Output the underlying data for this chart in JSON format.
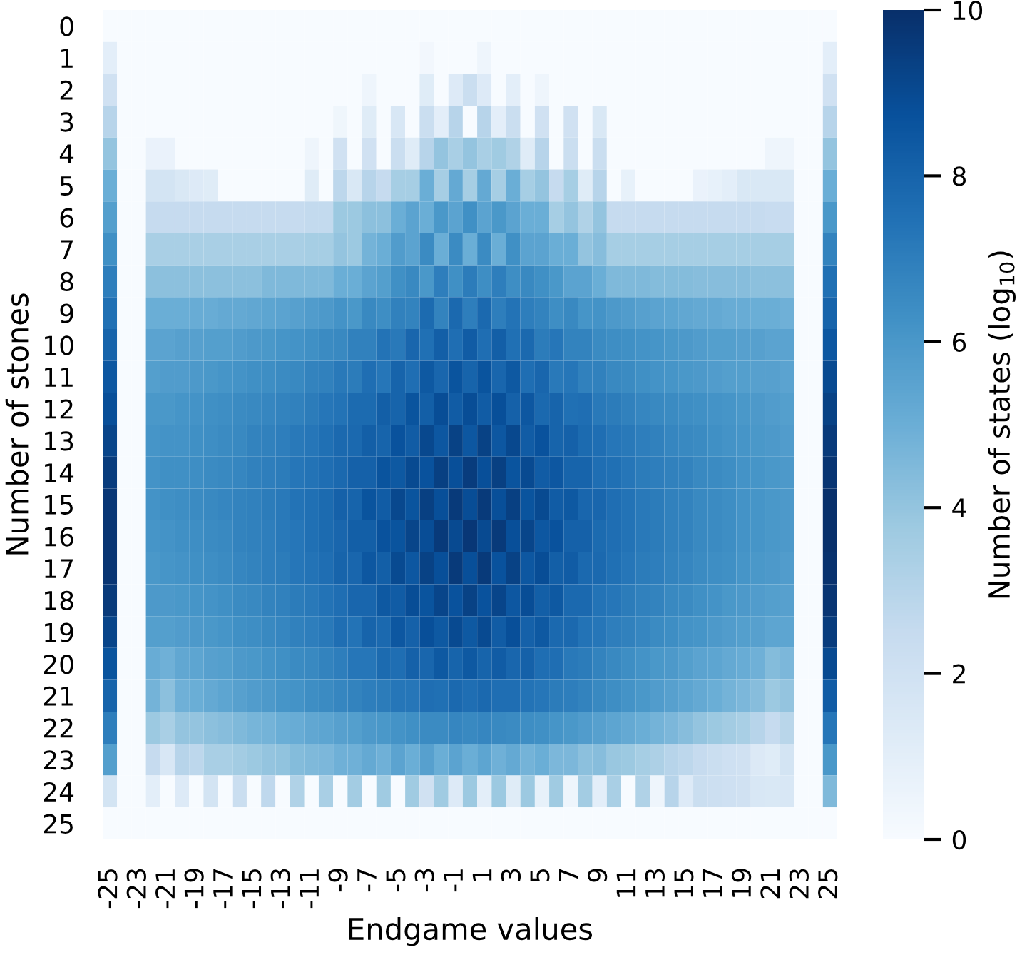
{
  "chart_data": {
    "type": "heatmap",
    "xlabel": "Endgame values",
    "ylabel": "Number of stones",
    "clabel": "Number of states (log$_{10}$)",
    "categories": [
      "-25",
      null,
      "-23",
      null,
      "-21",
      null,
      "-19",
      null,
      "-17",
      null,
      "-15",
      null,
      "-13",
      null,
      "-11",
      null,
      "-9",
      null,
      "-7",
      null,
      "-5",
      null,
      "-3",
      null,
      "-1",
      null,
      "1",
      null,
      "3",
      null,
      "5",
      null,
      "7",
      null,
      "9",
      null,
      "11",
      null,
      "13",
      null,
      "15",
      null,
      "17",
      null,
      "19",
      null,
      "21",
      null,
      "23",
      null,
      "25"
    ],
    "y_categories": [
      "0",
      "1",
      "2",
      "3",
      "4",
      "5",
      "6",
      "7",
      "8",
      "9",
      "10",
      "11",
      "12",
      "13",
      "14",
      "15",
      "16",
      "17",
      "18",
      "19",
      "20",
      "21",
      "22",
      "23",
      "24",
      "25"
    ],
    "clim": [
      0,
      10
    ],
    "cticks": [
      0,
      2,
      4,
      6,
      8,
      10
    ],
    "cells": [
      [
        0,
        0,
        0,
        0,
        0,
        0,
        0,
        0,
        0,
        0,
        0,
        0,
        0,
        0,
        0,
        0,
        0,
        0,
        0,
        0,
        0,
        0,
        0,
        0,
        0,
        0,
        0,
        0,
        0,
        0,
        0,
        0,
        0,
        0,
        0,
        0,
        0,
        0,
        0,
        0,
        0,
        0,
        0,
        0,
        0,
        0,
        0,
        0,
        0,
        0,
        0
      ],
      [
        1,
        0,
        0,
        0,
        0,
        0,
        0,
        0,
        0,
        0,
        0,
        0,
        0,
        0,
        0,
        0,
        0,
        0,
        0,
        0,
        0,
        0,
        0.3,
        0,
        0,
        0,
        0.5,
        0,
        0,
        0,
        0,
        0,
        0,
        0,
        0,
        0,
        0,
        0,
        0,
        0,
        0,
        0,
        0,
        0,
        0,
        0,
        0,
        0,
        0,
        0,
        1
      ],
      [
        2,
        0,
        0,
        0,
        0,
        0,
        0,
        0,
        0,
        0,
        0,
        0,
        0,
        0,
        0,
        0,
        0,
        0,
        0.5,
        0,
        0,
        0,
        1.2,
        0,
        1.3,
        2.3,
        1.3,
        0,
        1,
        0,
        0.5,
        0,
        0,
        0,
        0,
        0,
        0,
        0,
        0,
        0,
        0,
        0,
        0,
        0,
        0,
        0,
        0,
        0,
        0,
        0,
        2
      ],
      [
        3,
        0,
        0,
        0,
        0,
        0,
        0,
        0,
        0,
        0,
        0,
        0,
        0,
        0,
        0,
        0,
        0.4,
        0,
        1.2,
        0,
        1.6,
        0,
        2.3,
        1,
        3,
        0,
        3,
        1,
        2.3,
        0,
        2,
        0,
        2,
        0,
        1.5,
        0,
        0,
        0,
        0,
        0,
        0,
        0,
        0,
        0,
        0,
        0,
        0,
        0,
        0,
        0,
        3
      ],
      [
        4,
        0,
        0,
        0.7,
        0.7,
        0,
        0,
        0,
        0,
        0,
        0,
        0,
        0,
        0,
        0.5,
        0,
        2,
        0,
        2,
        0,
        2.3,
        1.2,
        3,
        4,
        3.4,
        4,
        3.4,
        3.7,
        3.2,
        1.2,
        3,
        0,
        2.3,
        0,
        2.3,
        0,
        0,
        0,
        0,
        0,
        0,
        0,
        0,
        0,
        0,
        0,
        0.5,
        0.5,
        0,
        0,
        4
      ],
      [
        5,
        0,
        0,
        1.8,
        1.8,
        1.5,
        1.3,
        1.2,
        0,
        0,
        0,
        0,
        0,
        0,
        1.2,
        0,
        2.8,
        1.5,
        3,
        2.5,
        3.5,
        3.5,
        5,
        3.5,
        5.2,
        3.5,
        5.2,
        3.5,
        5,
        3.5,
        4,
        2.5,
        3.5,
        1.2,
        3,
        0,
        0.8,
        0,
        0,
        0,
        0,
        0.7,
        0.8,
        1,
        1.5,
        1.5,
        1.5,
        1.5,
        0,
        0,
        5
      ],
      [
        5.7,
        0,
        0,
        2.5,
        2.5,
        2.5,
        2.5,
        2.5,
        2.5,
        2.5,
        2.5,
        2.5,
        2.5,
        2.5,
        2.6,
        2.6,
        3.8,
        3.8,
        4.2,
        4.2,
        5,
        5.5,
        5,
        6,
        5.5,
        6.3,
        5.5,
        6,
        5.5,
        5,
        5,
        3.5,
        4,
        3.2,
        4,
        2.5,
        2.5,
        2.5,
        2.5,
        2.5,
        2.5,
        2.5,
        2.5,
        2.5,
        2.5,
        2.5,
        2.4,
        2.4,
        0,
        0,
        6
      ],
      [
        6.3,
        0,
        0,
        3.4,
        3.4,
        3.4,
        3.4,
        3.4,
        3.4,
        3.4,
        3.4,
        3.4,
        3.4,
        3.4,
        3.5,
        3.5,
        4,
        3.8,
        4.8,
        5,
        5.8,
        5.5,
        6.5,
        5,
        6.5,
        5,
        6.5,
        5,
        6.3,
        5.5,
        5.5,
        5,
        5,
        4,
        4.3,
        3.5,
        3.5,
        3.5,
        3.5,
        3.5,
        3.5,
        3.5,
        3.5,
        3.5,
        3.5,
        3.5,
        3.5,
        3.5,
        0,
        0,
        6.8
      ],
      [
        7,
        0,
        0,
        4.2,
        4.2,
        4.2,
        4.2,
        4.2,
        4.2,
        4.2,
        4.2,
        4.5,
        4.5,
        4.5,
        4.5,
        4.5,
        5,
        5,
        5.5,
        5.7,
        6.3,
        6.6,
        6,
        7,
        6.3,
        7.1,
        6.4,
        7,
        6.4,
        6.6,
        6.3,
        6,
        5.5,
        5.5,
        5,
        4.5,
        4.5,
        4.5,
        4.4,
        4.4,
        4.4,
        4.3,
        4.3,
        4.3,
        4.3,
        4.2,
        4.2,
        4.2,
        0,
        0,
        7.5
      ],
      [
        7.5,
        0,
        0,
        5,
        5,
        5,
        5.1,
        5.1,
        5.2,
        5.2,
        5.3,
        5.4,
        5.5,
        5.6,
        5.8,
        5.9,
        6.2,
        6,
        6.6,
        6.4,
        6.9,
        6.8,
        7.7,
        6.8,
        7.8,
        7,
        7.8,
        7,
        7.4,
        7,
        6.8,
        6.4,
        6.6,
        6.1,
        6.2,
        5.9,
        5.8,
        5.6,
        5.5,
        5.4,
        5.3,
        5.2,
        5.2,
        5.1,
        5.1,
        5,
        5,
        4.9,
        0,
        0,
        8
      ],
      [
        8,
        0,
        0,
        5.5,
        5.5,
        5.6,
        5.6,
        5.7,
        5.7,
        5.8,
        5.9,
        6,
        6.1,
        6.2,
        6.3,
        6.5,
        6.6,
        6.9,
        6.9,
        7.4,
        7.2,
        7.9,
        7.5,
        8.2,
        7.6,
        8.3,
        7.6,
        8.2,
        7.5,
        7.8,
        7.1,
        7.3,
        6.8,
        6.8,
        6.5,
        6.4,
        6.3,
        6.2,
        6.1,
        6,
        5.9,
        5.8,
        5.7,
        5.7,
        5.6,
        5.6,
        5.5,
        5.5,
        0,
        0,
        8.5
      ],
      [
        8.5,
        0,
        0,
        5.7,
        5.8,
        5.8,
        5.9,
        6,
        6.1,
        6.2,
        6.3,
        6.4,
        6.5,
        6.6,
        6.8,
        6.9,
        7.2,
        7.1,
        7.6,
        7.3,
        8,
        7.6,
        8.4,
        7.9,
        8.6,
        8,
        8.6,
        7.9,
        8.4,
        7.6,
        7.9,
        7.2,
        7.3,
        6.9,
        6.9,
        6.6,
        6.5,
        6.3,
        6.2,
        6.1,
        6,
        5.9,
        5.8,
        5.7,
        5.7,
        5.6,
        5.6,
        5.5,
        0,
        0,
        9
      ],
      [
        8.8,
        0,
        0,
        6,
        6,
        6.1,
        6.2,
        6.3,
        6.4,
        6.5,
        6.6,
        6.7,
        6.8,
        6.9,
        7.1,
        7.3,
        7.4,
        7.7,
        7.7,
        8.2,
        8,
        8.6,
        8.2,
        8.9,
        8.3,
        8.9,
        8.3,
        8.8,
        8.1,
        8.5,
        7.8,
        8,
        7.5,
        7.6,
        7.2,
        7.1,
        6.9,
        6.7,
        6.6,
        6.5,
        6.4,
        6.3,
        6.2,
        6.1,
        6,
        5.9,
        5.8,
        5.7,
        0,
        0,
        9.3
      ],
      [
        9.2,
        0,
        0,
        6.1,
        6.2,
        6.2,
        6.3,
        6.4,
        6.5,
        6.6,
        6.8,
        6.9,
        7,
        7.2,
        7.3,
        7.5,
        7.8,
        7.8,
        8.2,
        8,
        8.7,
        8.3,
        9.1,
        8.5,
        9.3,
        8.5,
        9.3,
        8.5,
        9.1,
        8.3,
        8.7,
        8,
        8.1,
        7.7,
        7.6,
        7.3,
        7.2,
        7,
        6.9,
        6.7,
        6.6,
        6.5,
        6.3,
        6.2,
        6.1,
        6,
        5.9,
        5.8,
        0,
        0,
        9.6
      ],
      [
        9.5,
        0,
        0,
        6.2,
        6.3,
        6.3,
        6.4,
        6.5,
        6.6,
        6.7,
        6.9,
        7,
        7.1,
        7.3,
        7.4,
        7.6,
        7.8,
        8.1,
        8.1,
        8.6,
        8.4,
        9,
        8.7,
        9.4,
        8.8,
        9.5,
        8.8,
        9.4,
        8.6,
        9,
        8.3,
        8.5,
        8,
        8,
        7.6,
        7.5,
        7.3,
        7.1,
        7,
        6.9,
        6.8,
        6.6,
        6.5,
        6.4,
        6.2,
        6.1,
        6,
        5.9,
        0,
        0,
        9.8
      ],
      [
        9.7,
        0,
        0,
        6.2,
        6.3,
        6.4,
        6.5,
        6.6,
        6.7,
        6.8,
        6.9,
        7.1,
        7.2,
        7.4,
        7.5,
        7.7,
        8.1,
        8,
        8.6,
        8.3,
        9.1,
        8.6,
        9.4,
        8.8,
        9.6,
        8.9,
        9.6,
        8.8,
        9.4,
        8.6,
        9,
        8.3,
        8.4,
        7.9,
        7.9,
        7.6,
        7.4,
        7.2,
        7.1,
        6.9,
        6.8,
        6.6,
        6.5,
        6.4,
        6.2,
        6.1,
        6,
        5.9,
        0,
        0,
        10
      ],
      [
        9.8,
        0,
        0,
        6.1,
        6.2,
        6.3,
        6.4,
        6.5,
        6.6,
        6.8,
        6.9,
        7,
        7.2,
        7.3,
        7.5,
        7.7,
        7.9,
        8.2,
        8.2,
        8.7,
        8.6,
        9.2,
        8.9,
        9.6,
        9,
        9.7,
        9,
        9.6,
        8.8,
        9.2,
        8.5,
        8.7,
        8.1,
        8.1,
        7.7,
        7.6,
        7.4,
        7.2,
        7.1,
        6.9,
        6.8,
        6.6,
        6.5,
        6.4,
        6.2,
        6.1,
        6,
        5.9,
        0,
        0,
        10
      ],
      [
        9.8,
        0,
        0,
        6,
        6.1,
        6.2,
        6.3,
        6.4,
        6.5,
        6.7,
        6.8,
        7,
        7.1,
        7.3,
        7.4,
        7.6,
        8,
        7.9,
        8.5,
        8.2,
        9,
        8.5,
        9.3,
        8.8,
        9.6,
        8.8,
        9.6,
        8.7,
        9.3,
        8.5,
        8.9,
        8.2,
        8.3,
        7.8,
        7.8,
        7.5,
        7.3,
        7.1,
        7,
        6.8,
        6.7,
        6.5,
        6.4,
        6.3,
        6.1,
        6,
        5.9,
        5.8,
        0,
        0,
        9.9
      ],
      [
        9.6,
        0,
        0,
        5.9,
        5.9,
        6,
        6.1,
        6.2,
        6.3,
        6.5,
        6.6,
        6.8,
        6.9,
        7.1,
        7.2,
        7.4,
        7.6,
        7.9,
        7.9,
        8.4,
        8.3,
        8.9,
        8.6,
        9.2,
        8.7,
        9.3,
        8.7,
        9.2,
        8.5,
        8.9,
        8.2,
        8.4,
        7.8,
        7.8,
        7.4,
        7.3,
        7.1,
        6.9,
        6.8,
        6.6,
        6.5,
        6.3,
        6.2,
        6,
        5.9,
        5.8,
        5.7,
        5.6,
        0,
        0,
        9.8
      ],
      [
        9.2,
        0,
        0,
        5.7,
        5.7,
        5.8,
        5.9,
        6,
        6.1,
        6.3,
        6.4,
        6.6,
        6.7,
        6.9,
        7,
        7.2,
        7.6,
        7.4,
        8,
        7.8,
        8.5,
        8.1,
        8.8,
        8.4,
        9,
        8.4,
        9,
        8.3,
        8.8,
        8.1,
        8.4,
        7.8,
        7.8,
        7.4,
        7.3,
        7,
        6.9,
        6.7,
        6.5,
        6.4,
        6.2,
        6.1,
        5.9,
        5.8,
        5.7,
        5.6,
        5.4,
        5.4,
        0,
        0,
        9.5
      ],
      [
        8.6,
        0,
        0,
        5.1,
        4.9,
        5.3,
        5.4,
        5.6,
        5.7,
        5.9,
        6,
        6.2,
        6.3,
        6.5,
        6.6,
        6.8,
        7,
        7.3,
        7.3,
        7.7,
        7.6,
        8.1,
        7.9,
        8.4,
        8,
        8.4,
        8,
        8.3,
        7.9,
        8.1,
        7.6,
        7.6,
        7.2,
        7.1,
        6.8,
        6.6,
        6.4,
        6.2,
        6,
        5.9,
        5.7,
        5.5,
        5.4,
        5.2,
        5.1,
        4.9,
        4.4,
        4.6,
        0,
        0,
        9
      ],
      [
        8,
        0,
        0,
        4.8,
        4.2,
        4.9,
        5,
        5.2,
        5.4,
        5.6,
        5.8,
        5.9,
        6.1,
        6.2,
        6.4,
        6.5,
        6.7,
        6.8,
        7,
        7.1,
        7.3,
        7.3,
        7.6,
        7.5,
        7.8,
        7.6,
        7.8,
        7.6,
        7.6,
        7.4,
        7.3,
        7.1,
        7,
        6.8,
        6.6,
        6.4,
        6.2,
        6,
        5.8,
        5.6,
        5.4,
        5.2,
        5,
        4.8,
        4.6,
        4.3,
        3.8,
        4,
        0,
        0,
        8.3
      ],
      [
        7,
        0,
        0,
        3.8,
        3.4,
        4,
        4,
        4.2,
        4.3,
        4.5,
        4.7,
        4.8,
        5,
        5.1,
        5.3,
        5.4,
        5.6,
        5.7,
        5.9,
        6,
        6.2,
        6.3,
        6.5,
        6.5,
        6.7,
        6.6,
        6.7,
        6.6,
        6.5,
        6.4,
        6.3,
        6.1,
        6,
        5.8,
        5.6,
        5.4,
        5.2,
        5,
        4.8,
        4.6,
        4.3,
        4,
        3.8,
        3.6,
        3.4,
        3,
        2.5,
        2.9,
        0,
        0,
        7.3
      ],
      [
        5.7,
        0,
        0,
        2.5,
        1.6,
        3,
        2.8,
        3.4,
        3.4,
        3.6,
        3.8,
        4,
        4.1,
        4.4,
        4.5,
        4.6,
        4.9,
        4.9,
        5.2,
        4.9,
        5.5,
        5,
        5.6,
        5,
        5.5,
        5,
        5.4,
        4.9,
        5.2,
        4.8,
        5,
        4.6,
        4.6,
        4.2,
        4.3,
        3.9,
        3.8,
        3.5,
        3.3,
        3,
        2.8,
        2.5,
        2.3,
        2.1,
        2,
        1.4,
        1.2,
        1.8,
        0,
        0,
        6
      ],
      [
        1.8,
        0,
        0,
        1,
        0,
        1.3,
        0,
        1.8,
        0,
        2.3,
        0,
        2.7,
        0,
        3.2,
        0,
        3.4,
        0,
        3.6,
        0,
        3.7,
        0,
        3.7,
        2,
        3.7,
        1.3,
        3.8,
        1,
        3.8,
        1.2,
        3.8,
        0.8,
        3.7,
        0.5,
        3.6,
        1,
        3.4,
        0,
        3.2,
        0.5,
        3,
        1.3,
        2.3,
        2.2,
        2.1,
        2,
        1.6,
        1.5,
        1.6,
        0,
        0,
        4.5
      ],
      [
        0,
        0,
        0,
        0,
        0,
        0,
        0,
        0,
        0,
        0,
        0,
        0,
        0,
        0,
        0,
        0,
        0,
        0,
        0,
        0,
        0,
        0,
        0,
        0,
        0,
        0,
        0,
        0,
        0,
        0,
        0,
        0,
        0,
        0,
        0,
        0,
        0,
        0,
        0,
        0,
        0,
        0,
        0,
        0,
        0,
        0,
        0,
        0,
        0,
        0,
        0
      ]
    ]
  }
}
